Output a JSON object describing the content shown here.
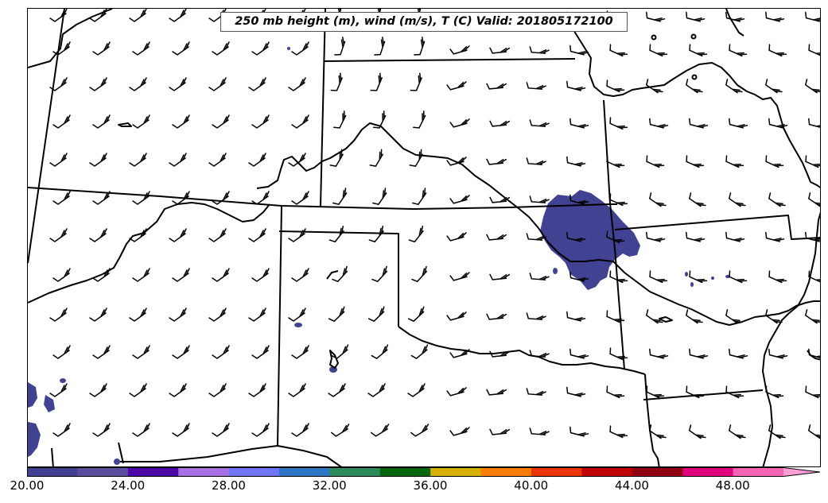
{
  "title": "250 mb height (m), wind (m/s), T (C) Valid: 201805172100",
  "colorbar": {
    "colors": [
      "#403f93",
      "#5a4f9c",
      "#4c08a6",
      "#a970e4",
      "#7076fc",
      "#2d76c4",
      "#2b8b5a",
      "#05660d",
      "#d6b000",
      "#fb7c02",
      "#ea3500",
      "#c00000",
      "#900010",
      "#e0047a",
      "#f764b4",
      "#ff9fd6"
    ],
    "tick_labels": [
      "20.00",
      "24.00",
      "28.00",
      "32.00",
      "36.00",
      "40.00",
      "44.00",
      "48.00"
    ],
    "tick_values": [
      20,
      24,
      28,
      32,
      36,
      40,
      44,
      48
    ],
    "range": [
      20,
      52
    ]
  },
  "fill_color": "#414291",
  "icons": [
    "wind-barb-icon"
  ]
}
